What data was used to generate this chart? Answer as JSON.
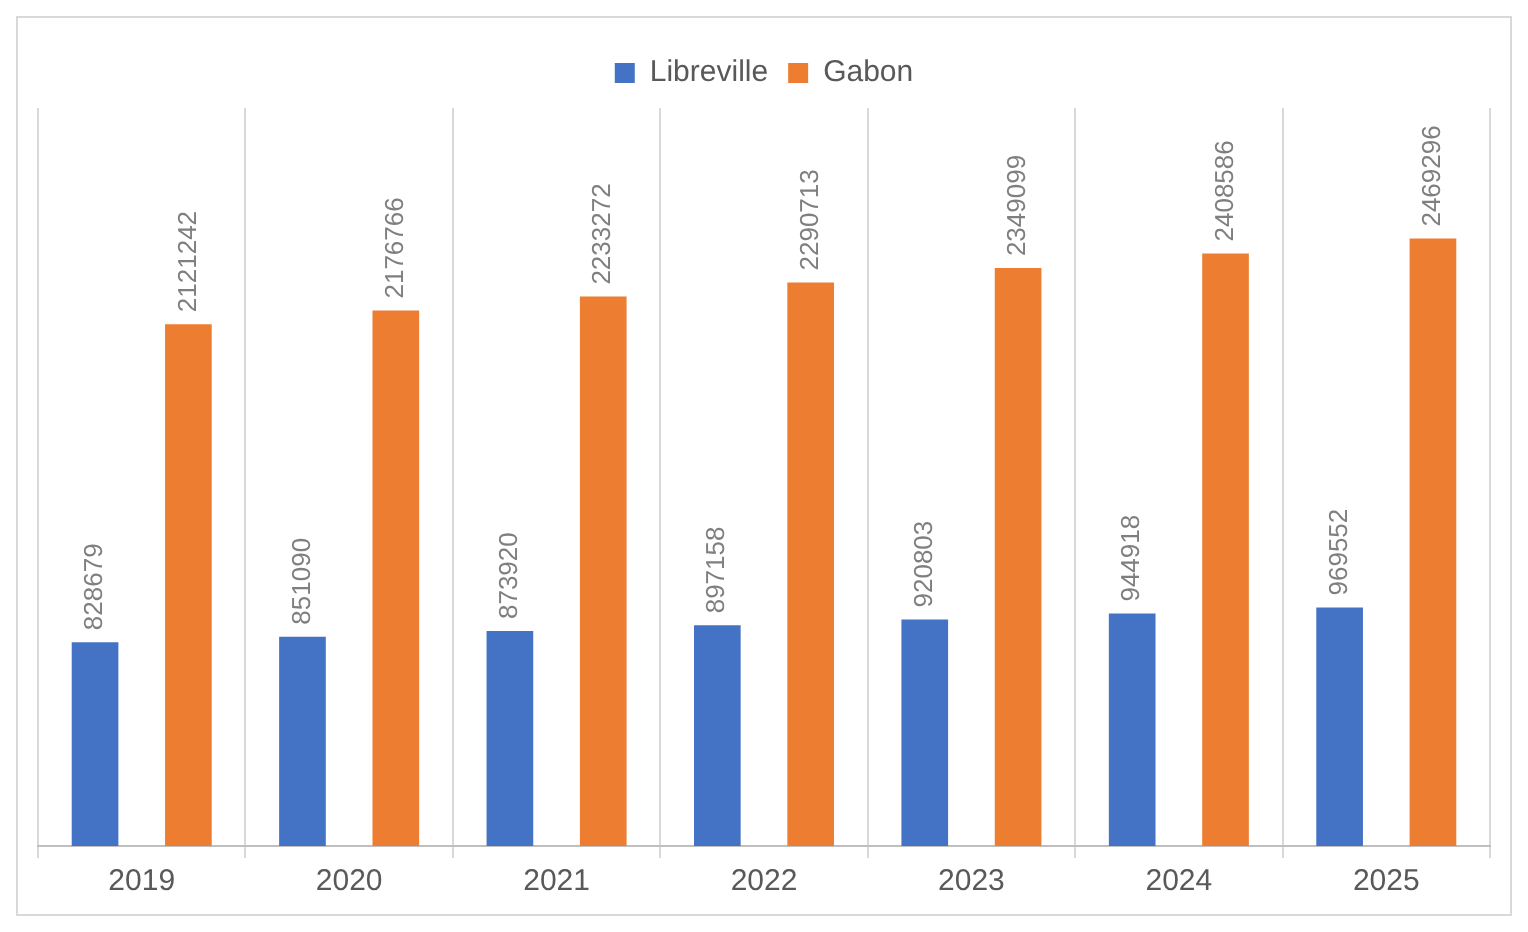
{
  "chart_data": {
    "type": "bar",
    "categories": [
      "2019",
      "2020",
      "2021",
      "2022",
      "2023",
      "2024",
      "2025"
    ],
    "series": [
      {
        "name": "Libreville",
        "color": "#4472c4",
        "values": [
          828679,
          851090,
          873920,
          897158,
          920803,
          944918,
          969552
        ]
      },
      {
        "name": "Gabon",
        "color": "#ed7d31",
        "values": [
          2121242,
          2176766,
          2233272,
          2290713,
          2349099,
          2408586,
          2469296
        ]
      }
    ],
    "data_labels": true,
    "legend": "top",
    "grid": "x"
  }
}
